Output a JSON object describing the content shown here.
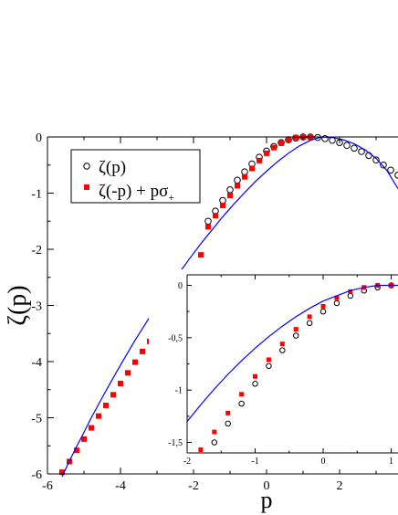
{
  "chart_data": [
    {
      "type": "scatter",
      "panel": "main",
      "xlabel": "p",
      "ylabel": "ζ(p)",
      "xlim": [
        -6,
        3.6
      ],
      "ylim": [
        -6,
        0
      ],
      "x_ticks": [
        -6,
        -4,
        -2,
        0,
        2
      ],
      "x_tick_labels": [
        "-6",
        "-4",
        "-2",
        "0",
        "2"
      ],
      "y_ticks": [
        0,
        -1,
        -2,
        -3,
        -4,
        -5,
        -6
      ],
      "y_tick_labels": [
        "0",
        "-1",
        "-2",
        "-3",
        "-4",
        "-5",
        "-6"
      ],
      "grid": false,
      "legend_position": "top-left",
      "series": [
        {
          "name": "ζ(p)",
          "marker": "open-circle",
          "color": "#000000",
          "x": [
            -1.6,
            -1.4,
            -1.2,
            -1.0,
            -0.8,
            -0.6,
            -0.4,
            -0.2,
            0.0,
            0.2,
            0.4,
            0.6,
            0.8,
            1.0,
            1.2,
            1.4,
            1.6,
            1.8,
            2.0,
            2.2,
            2.4,
            2.6,
            2.8,
            3.0,
            3.2,
            3.4,
            3.6
          ],
          "values": [
            -1.5,
            -1.32,
            -1.13,
            -0.94,
            -0.77,
            -0.62,
            -0.48,
            -0.36,
            -0.25,
            -0.17,
            -0.1,
            -0.05,
            -0.02,
            0.0,
            0.0,
            -0.01,
            -0.03,
            -0.06,
            -0.1,
            -0.15,
            -0.2,
            -0.26,
            -0.33,
            -0.41,
            -0.5,
            -0.59,
            -0.68
          ]
        },
        {
          "name": "ζ(-p) + pσ+",
          "marker": "filled-square",
          "color": "#ff0000",
          "x": [
            -5.6,
            -5.4,
            -5.2,
            -5.0,
            -4.8,
            -4.6,
            -4.4,
            -4.2,
            -4.0,
            -3.8,
            -3.6,
            -3.4,
            -3.2,
            -3.0,
            -2.8,
            -2.6,
            -2.4,
            -2.2,
            -2.0,
            -1.8,
            -1.6,
            -1.4,
            -1.2,
            -1.0,
            -0.8,
            -0.6,
            -0.4,
            -0.2,
            0.0,
            0.2,
            0.4,
            0.6,
            0.8,
            1.0,
            1.2
          ],
          "values": [
            -5.97,
            -5.78,
            -5.58,
            -5.38,
            -5.18,
            -4.97,
            -4.78,
            -4.59,
            -4.39,
            -4.2,
            -4.01,
            -3.82,
            -3.64,
            -3.46,
            -3.28,
            -3.1,
            -2.92,
            -2.75,
            -2.45,
            -2.1,
            -1.6,
            -1.4,
            -1.22,
            -1.04,
            -0.87,
            -0.71,
            -0.56,
            -0.42,
            -0.29,
            -0.19,
            -0.11,
            -0.05,
            -0.01,
            0.0,
            0.0
          ]
        },
        {
          "type": "line",
          "color": "#0000ff",
          "x": [
            -5.6,
            -5.4,
            -5.2,
            -5.0,
            -4.8,
            -4.5,
            -4.2,
            -3.9,
            -3.6,
            -3.3,
            -3.0,
            -2.7,
            -2.4,
            -2.1,
            -1.8,
            -1.5,
            -1.2,
            -0.9,
            -0.6,
            -0.3,
            0.0,
            0.3,
            0.6,
            0.9,
            1.2,
            1.5,
            1.8,
            2.1,
            2.4,
            2.7,
            3.0,
            3.3,
            3.6
          ],
          "values": [
            -6.05,
            -5.77,
            -5.51,
            -5.26,
            -5.0,
            -4.64,
            -4.29,
            -3.95,
            -3.62,
            -3.31,
            -3.0,
            -2.71,
            -2.43,
            -2.16,
            -1.9,
            -1.66,
            -1.42,
            -1.2,
            -0.99,
            -0.79,
            -0.61,
            -0.44,
            -0.29,
            -0.16,
            -0.06,
            0.0,
            -0.01,
            -0.05,
            -0.12,
            -0.23,
            -0.38,
            -0.6,
            -0.92
          ]
        }
      ]
    },
    {
      "type": "scatter",
      "panel": "inset",
      "xlim": [
        -2,
        1.1
      ],
      "ylim": [
        -1.6,
        0.1
      ],
      "x_ticks": [
        -2,
        -1,
        0,
        1
      ],
      "x_tick_labels": [
        "-2",
        "-1",
        "0",
        "1"
      ],
      "y_ticks": [
        0,
        -0.5,
        -1,
        -1.5
      ],
      "y_tick_labels": [
        "0",
        "-0,5",
        "-1",
        "-1,5"
      ],
      "grid": false,
      "series": [
        {
          "name": "ζ(p)",
          "marker": "open-circle",
          "color": "#000000",
          "x": [
            -1.6,
            -1.4,
            -1.2,
            -1.0,
            -0.8,
            -0.6,
            -0.4,
            -0.2,
            0.0,
            0.2,
            0.4,
            0.6,
            0.8,
            1.0
          ],
          "values": [
            -1.5,
            -1.32,
            -1.13,
            -0.94,
            -0.77,
            -0.62,
            -0.48,
            -0.36,
            -0.25,
            -0.17,
            -0.1,
            -0.05,
            -0.02,
            0.0
          ]
        },
        {
          "name": "ζ(-p) + pσ+",
          "marker": "filled-square",
          "color": "#ff0000",
          "x": [
            -1.8,
            -1.6,
            -1.4,
            -1.2,
            -1.0,
            -0.8,
            -0.6,
            -0.4,
            -0.2,
            0.0,
            0.2,
            0.4,
            0.6,
            0.8,
            1.0
          ],
          "values": [
            -1.57,
            -1.4,
            -1.22,
            -1.04,
            -0.87,
            -0.71,
            -0.56,
            -0.42,
            -0.3,
            -0.2,
            -0.12,
            -0.06,
            -0.02,
            0.0,
            0.0
          ]
        },
        {
          "type": "line",
          "color": "#0000ff",
          "x": [
            -2.0,
            -1.8,
            -1.6,
            -1.4,
            -1.2,
            -1.0,
            -0.8,
            -0.6,
            -0.4,
            -0.2,
            0.0,
            0.2,
            0.4,
            0.6,
            0.8,
            1.0,
            1.1
          ],
          "values": [
            -1.3,
            -1.14,
            -0.99,
            -0.85,
            -0.72,
            -0.6,
            -0.49,
            -0.39,
            -0.3,
            -0.22,
            -0.15,
            -0.1,
            -0.05,
            -0.02,
            0.0,
            0.0,
            0.0
          ]
        }
      ]
    }
  ],
  "legend": {
    "items": [
      {
        "label": "ζ(p)",
        "marker": "open-circle",
        "color": "#000000"
      },
      {
        "label": "ζ(-p) + pσ+",
        "marker": "filled-square",
        "color": "#ff0000"
      }
    ]
  }
}
